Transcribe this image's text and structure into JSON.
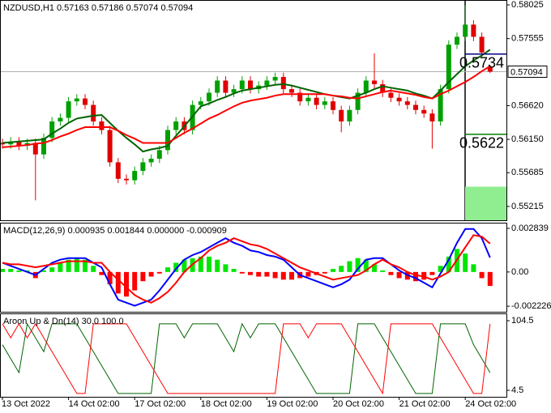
{
  "chart_data": [
    {
      "type": "candlestick",
      "title": "NZDUSD,H1  0.57163 0.57186 0.57074 0.57094",
      "open": [
        0.561,
        0.5608,
        0.5612,
        0.5606,
        0.561,
        0.5594,
        0.5617,
        0.564,
        0.5645,
        0.5668,
        0.5672,
        0.5663,
        0.564,
        0.5628,
        0.5583,
        0.556,
        0.5558,
        0.5571,
        0.5583,
        0.5588,
        0.56,
        0.5628,
        0.564,
        0.5628,
        0.5663,
        0.5668,
        0.568,
        0.5697,
        0.568,
        0.5685,
        0.5697,
        0.5685,
        0.569,
        0.5697,
        0.5702,
        0.5685,
        0.568,
        0.5668,
        0.5673,
        0.5663,
        0.5668,
        0.5656,
        0.564,
        0.5656,
        0.568,
        0.5697,
        0.5692,
        0.568,
        0.5673,
        0.5668,
        0.5663,
        0.5656,
        0.5651,
        0.564,
        0.5685,
        0.5747,
        0.5758,
        0.5775,
        0.5758,
        0.57163
      ],
      "high": [
        0.5616,
        0.5618,
        0.5618,
        0.5616,
        0.5616,
        0.5623,
        0.5646,
        0.5651,
        0.5674,
        0.5678,
        0.5678,
        0.5669,
        0.5646,
        0.5634,
        0.5589,
        0.5566,
        0.5577,
        0.5589,
        0.5594,
        0.5606,
        0.5634,
        0.5646,
        0.5646,
        0.5669,
        0.5674,
        0.5686,
        0.5703,
        0.5703,
        0.5691,
        0.5703,
        0.5703,
        0.5696,
        0.5703,
        0.5708,
        0.5708,
        0.5691,
        0.5686,
        0.5679,
        0.5679,
        0.5674,
        0.5674,
        0.5662,
        0.5662,
        0.5686,
        0.5703,
        0.5735,
        0.5698,
        0.5686,
        0.5679,
        0.5674,
        0.5669,
        0.5662,
        0.5657,
        0.5691,
        0.5753,
        0.5764,
        0.5802,
        0.5781,
        0.5764,
        0.57186
      ],
      "low": [
        0.5602,
        0.5602,
        0.56,
        0.56,
        0.553,
        0.5588,
        0.5611,
        0.5634,
        0.5639,
        0.5662,
        0.5657,
        0.5634,
        0.5622,
        0.5577,
        0.5554,
        0.5552,
        0.5552,
        0.5565,
        0.5577,
        0.5582,
        0.5594,
        0.5622,
        0.5622,
        0.5622,
        0.5657,
        0.5662,
        0.5674,
        0.5674,
        0.5674,
        0.5679,
        0.5679,
        0.5679,
        0.5684,
        0.5691,
        0.5679,
        0.5674,
        0.5662,
        0.5662,
        0.5657,
        0.5657,
        0.565,
        0.5625,
        0.5634,
        0.565,
        0.5674,
        0.5686,
        0.5674,
        0.5667,
        0.5662,
        0.5657,
        0.565,
        0.5645,
        0.5602,
        0.5634,
        0.5679,
        0.5741,
        0.5752,
        0.5752,
        0.573,
        0.57074
      ],
      "close": [
        0.5608,
        0.5612,
        0.5606,
        0.561,
        0.5594,
        0.5617,
        0.564,
        0.5645,
        0.5668,
        0.5672,
        0.5663,
        0.564,
        0.5628,
        0.5583,
        0.556,
        0.5558,
        0.5571,
        0.5583,
        0.5588,
        0.56,
        0.5628,
        0.564,
        0.5628,
        0.5663,
        0.5668,
        0.568,
        0.5697,
        0.568,
        0.5685,
        0.5697,
        0.5685,
        0.569,
        0.5697,
        0.5702,
        0.5685,
        0.568,
        0.5668,
        0.5673,
        0.5663,
        0.5668,
        0.5656,
        0.564,
        0.5656,
        0.568,
        0.5697,
        0.5692,
        0.568,
        0.5673,
        0.5668,
        0.5663,
        0.5656,
        0.5651,
        0.564,
        0.5685,
        0.5747,
        0.5758,
        0.5775,
        0.5758,
        0.5736,
        0.57094
      ],
      "up_color": "#00a000",
      "down_color": "#e00000",
      "series": [
        {
          "color": "#006400",
          "values": [
            0.561,
            0.5611,
            0.5612,
            0.5613,
            0.5614,
            0.5615,
            0.5623,
            0.563,
            0.5638,
            0.5644,
            0.5646,
            0.5648,
            0.5649,
            0.5638,
            0.5627,
            0.5617,
            0.5608,
            0.5598,
            0.5601,
            0.5603,
            0.5606,
            0.562,
            0.5633,
            0.5647,
            0.5661,
            0.5665,
            0.567,
            0.5674,
            0.5679,
            0.5683,
            0.5685,
            0.5687,
            0.5689,
            0.5691,
            0.5692,
            0.569,
            0.5687,
            0.5684,
            0.5681,
            0.5678,
            0.5676,
            0.5674,
            0.5672,
            0.5676,
            0.568,
            0.5685,
            0.5689,
            0.5687,
            0.5685,
            0.5683,
            0.5679,
            0.5676,
            0.5672,
            0.5683,
            0.5695,
            0.5706,
            0.5717,
            0.5725,
            0.5732,
            0.574
          ]
        },
        {
          "color": "#ff0000",
          "values": [
            0.5604,
            0.5605,
            0.5606,
            0.5607,
            0.5609,
            0.561,
            0.5614,
            0.5619,
            0.5623,
            0.5628,
            0.5632,
            0.5632,
            0.5632,
            0.5632,
            0.5627,
            0.5621,
            0.5616,
            0.561,
            0.561,
            0.561,
            0.561,
            0.5617,
            0.5624,
            0.563,
            0.5637,
            0.5644,
            0.5649,
            0.5655,
            0.5661,
            0.5666,
            0.5669,
            0.5671,
            0.5673,
            0.5676,
            0.5678,
            0.5678,
            0.5678,
            0.5678,
            0.5678,
            0.5678,
            0.5676,
            0.5675,
            0.5673,
            0.5672,
            0.5675,
            0.5678,
            0.5681,
            0.5683,
            0.5681,
            0.5679,
            0.5677,
            0.5674,
            0.5672,
            0.5678,
            0.5683,
            0.5689,
            0.5695,
            0.5702,
            0.571,
            0.5717
          ]
        }
      ],
      "levels": [
        {
          "value": 0.5734,
          "color": "#000080"
        },
        {
          "value": 0.5622,
          "color": "#008000"
        }
      ],
      "zone": {
        "from": 0.5549,
        "to": 0.55022,
        "color": "#90ee90"
      },
      "current_price": 0.57094,
      "ylim": [
        0.55022,
        0.58093
      ],
      "yticks": [
        0.58025,
        0.57555,
        {
          "value": 0.5662,
          "label": "0.56620"
        },
        {
          "value": 0.5615,
          "label": "0.56150"
        },
        0.55685,
        0.55215
      ],
      "grid": false
    },
    {
      "type": "macd",
      "title": "MACD(12,26,9) 0.000935 0.001844 0.000000 -0.000909",
      "histogram": [
        0.0002,
        0.0002,
        0.0001,
        0.0001,
        -0.0004,
        0.0001,
        0.0003,
        0.0006,
        0.0008,
        0.0009,
        0.0008,
        0.0004,
        -0.0002,
        -0.0008,
        -0.0014,
        -0.0016,
        -0.0012,
        -0.0006,
        -0.0003,
        -0.0001,
        0.0003,
        0.0006,
        0.0008,
        0.0009,
        0.001,
        0.001,
        0.0008,
        0.0005,
        0.0002,
        -0.0001,
        -0.0002,
        -0.0003,
        -0.0003,
        -0.0004,
        -0.0005,
        -0.0005,
        -0.0004,
        -0.0003,
        -0.0002,
        -0.0001,
        0.0002,
        0.0004,
        0.0007,
        0.0009,
        0.0008,
        0.0005,
        0.0001,
        -0.0002,
        -0.0004,
        -0.0005,
        -0.0006,
        -0.0005,
        -0.0002,
        0.0004,
        0.001,
        0.0015,
        0.0012,
        0.0005,
        -0.0004,
        -0.000909
      ],
      "hist_up_color": "#00e600",
      "hist_down_color": "#ff0000",
      "series": [
        {
          "color": "#0000ff",
          "values": [
            0.0006,
            0.0004,
            0.0002,
            0.0,
            -0.0002,
            0.0002,
            0.0006,
            0.0008,
            0.0009,
            0.0009,
            0.0009,
            0.0006,
            0.0003,
            -0.0008,
            -0.0018,
            -0.002,
            -0.0022,
            -0.002,
            -0.0018,
            -0.0012,
            -0.0005,
            0.0002,
            0.0008,
            0.0011,
            0.0013,
            0.0016,
            0.0019,
            0.0022,
            0.0019,
            0.0017,
            0.0014,
            0.0013,
            0.0011,
            0.001,
            0.0008,
            0.0003,
            -0.0002,
            -0.0004,
            -0.0006,
            -0.0008,
            -0.001,
            -0.0008,
            -0.0005,
            0.0002,
            0.0008,
            0.0009,
            0.0009,
            0.0005,
            0.0001,
            -0.0002,
            -0.0004,
            -0.0007,
            -0.001,
            -0.0001,
            0.0008,
            0.0019,
            0.0028,
            0.0028,
            0.0022,
            0.000935
          ]
        },
        {
          "color": "#ff0000",
          "values": [
            0.0006,
            0.0005,
            0.0005,
            0.0004,
            0.0003,
            0.0004,
            0.0005,
            0.0006,
            0.0007,
            0.0007,
            0.0007,
            0.0006,
            0.0006,
            0.0,
            -0.0005,
            -0.001,
            -0.0015,
            -0.0018,
            -0.002,
            -0.0017,
            -0.0013,
            -0.0007,
            0.0,
            0.0005,
            0.0009,
            0.0014,
            0.0017,
            0.0019,
            0.0022,
            0.002,
            0.0018,
            0.0017,
            0.0015,
            0.0012,
            0.0009,
            0.0006,
            0.0003,
            0.0001,
            -0.0001,
            -0.0003,
            -0.0005,
            -0.0004,
            -0.0003,
            -0.0002,
            0.0001,
            0.0005,
            0.0008,
            0.0005,
            0.0003,
            0.0,
            -0.0002,
            -0.0003,
            -0.0005,
            -0.0003,
            0.0,
            0.0008,
            0.0016,
            0.0024,
            0.0023,
            0.001844
          ]
        }
      ],
      "ylim": [
        -0.00259,
        0.003207
      ],
      "yticks": [
        0.002839,
        {
          "value": 0,
          "label": "0.00"
        },
        -0.002226
      ],
      "grid": false
    },
    {
      "type": "aroon",
      "title": "Aroon Up & Dn(14) 30.0 100.0",
      "categories": [
        "13 Oct 2022",
        null,
        null,
        null,
        null,
        null,
        null,
        null,
        "14 Oct 02:00",
        null,
        null,
        null,
        null,
        null,
        null,
        null,
        "17 Oct 02:00",
        null,
        null,
        null,
        null,
        null,
        null,
        null,
        "18 Oct 02:00",
        null,
        null,
        null,
        null,
        null,
        null,
        null,
        "19 Oct 02:00",
        null,
        null,
        null,
        null,
        null,
        null,
        null,
        "20 Oct 02:00",
        null,
        null,
        null,
        null,
        null,
        null,
        null,
        "21 Oct 02:00",
        null,
        null,
        null,
        null,
        null,
        null,
        null,
        "24 Oct 02:00",
        null,
        null,
        null
      ],
      "series": [
        {
          "color": "#006400",
          "values": [
            70,
            50,
            30,
            100,
            80,
            60,
            100,
            100,
            100,
            100,
            80,
            60,
            40,
            20,
            0,
            0,
            0,
            0,
            0,
            100,
            100,
            100,
            80,
            100,
            100,
            100,
            100,
            80,
            60,
            100,
            80,
            100,
            100,
            100,
            80,
            60,
            40,
            20,
            0,
            0,
            0,
            0,
            0,
            100,
            100,
            100,
            80,
            60,
            40,
            20,
            0,
            0,
            0,
            100,
            100,
            100,
            100,
            70,
            50,
            30
          ]
        },
        {
          "color": "#ff0000",
          "values": [
            100,
            80,
            100,
            80,
            100,
            80,
            60,
            40,
            20,
            0,
            0,
            100,
            100,
            100,
            100,
            100,
            80,
            60,
            40,
            20,
            0,
            0,
            0,
            0,
            0,
            0,
            0,
            0,
            0,
            0,
            0,
            0,
            0,
            0,
            100,
            100,
            100,
            80,
            100,
            100,
            100,
            100,
            80,
            60,
            40,
            20,
            0,
            100,
            100,
            100,
            100,
            100,
            100,
            80,
            60,
            40,
            20,
            0,
            0,
            100
          ]
        }
      ],
      "ylim": [
        -4.8,
        115
      ],
      "yticks": [
        104.5,
        4.5
      ],
      "grid": false
    }
  ]
}
